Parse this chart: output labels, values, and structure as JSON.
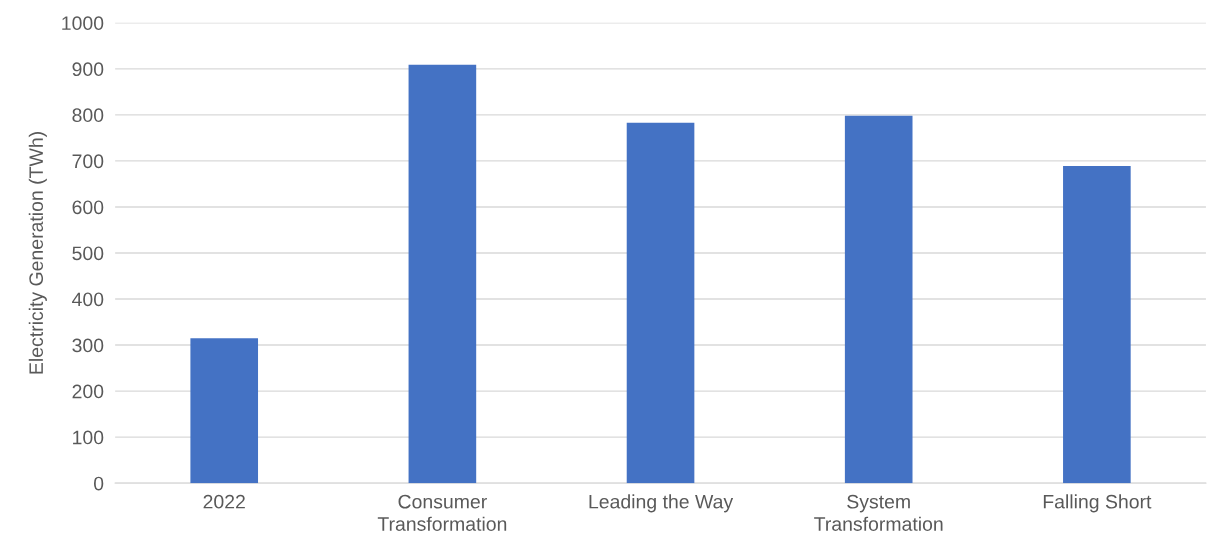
{
  "chart_data": {
    "type": "bar",
    "ylabel": "Electricity Generation (TWh)",
    "categories": [
      "2022",
      "Consumer Transformation",
      "Leading the Way",
      "System Transformation",
      "Falling Short"
    ],
    "values": [
      315,
      909,
      783,
      798,
      689
    ],
    "color": "#4472c4",
    "ylim": [
      0,
      1000
    ],
    "yticks": [
      0,
      100,
      200,
      300,
      400,
      500,
      600,
      700,
      800,
      900,
      1000
    ],
    "grid": "y"
  }
}
